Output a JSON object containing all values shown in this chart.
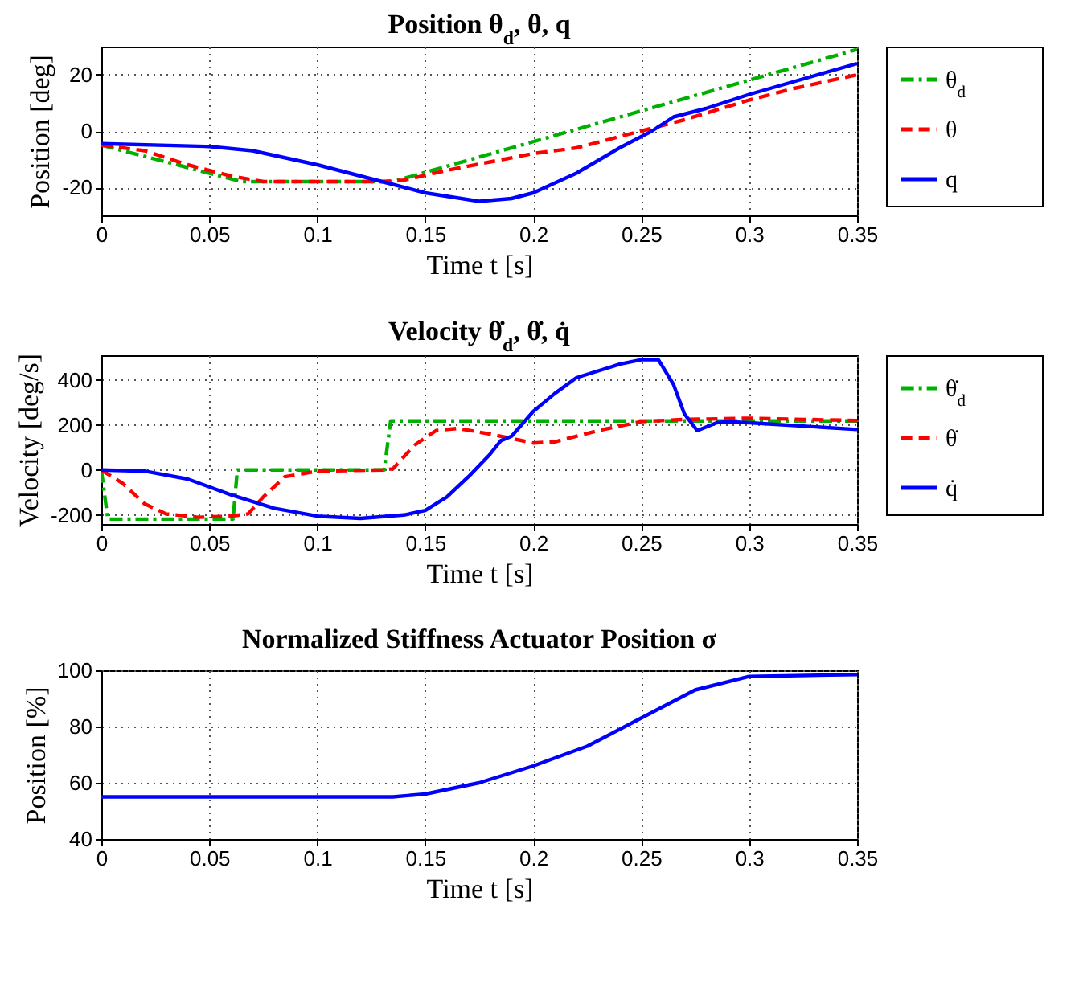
{
  "chart_data": [
    {
      "type": "line",
      "title": "Position θ$_{d}$, θ, q",
      "xlabel": "Time t [s]",
      "ylabel": "Position [deg]",
      "xlim": [
        0,
        0.35
      ],
      "xticks": [
        0,
        0.05,
        0.1,
        0.15,
        0.2,
        0.25,
        0.3,
        0.35
      ],
      "ylim": [
        -30,
        30
      ],
      "yticks": [
        -20,
        0,
        20
      ],
      "grid": true,
      "legend": "right",
      "series": [
        {
          "name": "θ$_{d}$",
          "color": "#00b000",
          "line_style": "dashdot",
          "x": [
            0,
            0.065,
            0.135,
            0.35
          ],
          "values": [
            -5,
            -18,
            -18,
            29
          ]
        },
        {
          "name": "θ",
          "color": "#ff0000",
          "line_style": "dashed",
          "x": [
            0,
            0.02,
            0.04,
            0.06,
            0.075,
            0.13,
            0.14,
            0.16,
            0.18,
            0.2,
            0.22,
            0.24,
            0.25,
            0.27,
            0.3,
            0.32,
            0.35
          ],
          "values": [
            -5,
            -7,
            -12,
            -16,
            -18,
            -18,
            -17.5,
            -14,
            -11,
            -8,
            -6,
            -2,
            0,
            4,
            11,
            15,
            20
          ]
        },
        {
          "name": "q",
          "color": "#0000ff",
          "line_style": "solid",
          "x": [
            0,
            0.05,
            0.07,
            0.1,
            0.13,
            0.15,
            0.175,
            0.19,
            0.2,
            0.22,
            0.24,
            0.255,
            0.265,
            0.28,
            0.3,
            0.35
          ],
          "values": [
            -4.5,
            -5.5,
            -7,
            -12,
            -18,
            -22,
            -25,
            -24,
            -22,
            -15,
            -6,
            0,
            5,
            8,
            13,
            24
          ]
        }
      ]
    },
    {
      "type": "line",
      "title": "Velocity θ̇$_{d}$, θ̇, q̇",
      "xlabel": "Time t [s]",
      "ylabel": "Velocity [deg/s]",
      "xlim": [
        0,
        0.35
      ],
      "xticks": [
        0,
        0.05,
        0.1,
        0.15,
        0.2,
        0.25,
        0.3,
        0.35
      ],
      "ylim": [
        -240,
        510
      ],
      "yticks": [
        -200,
        0,
        200,
        400
      ],
      "grid": true,
      "legend": "right",
      "series": [
        {
          "name": "θ̇$_{d}$",
          "color": "#00b000",
          "line_style": "dashdot",
          "x": [
            0,
            0.003,
            0.061,
            0.063,
            0.131,
            0.134,
            0.35
          ],
          "values": [
            0,
            -218,
            -218,
            0,
            0,
            218,
            218
          ]
        },
        {
          "name": "θ̇",
          "color": "#ff0000",
          "line_style": "dashed",
          "x": [
            0,
            0.01,
            0.02,
            0.03,
            0.045,
            0.06,
            0.068,
            0.075,
            0.085,
            0.1,
            0.13,
            0.135,
            0.145,
            0.155,
            0.165,
            0.18,
            0.2,
            0.21,
            0.23,
            0.25,
            0.27,
            0.3,
            0.35
          ],
          "values": [
            0,
            -60,
            -150,
            -195,
            -210,
            -205,
            -195,
            -120,
            -30,
            -5,
            0,
            5,
            110,
            175,
            185,
            160,
            120,
            125,
            175,
            215,
            225,
            230,
            220
          ]
        },
        {
          "name": "q̇",
          "color": "#0000ff",
          "line_style": "solid",
          "x": [
            0,
            0.02,
            0.04,
            0.06,
            0.08,
            0.1,
            0.12,
            0.14,
            0.15,
            0.16,
            0.17,
            0.18,
            0.185,
            0.19,
            0.2,
            0.21,
            0.22,
            0.24,
            0.25,
            0.258,
            0.265,
            0.27,
            0.276,
            0.285,
            0.29,
            0.3,
            0.35
          ],
          "values": [
            0,
            -5,
            -40,
            -110,
            -170,
            -205,
            -215,
            -200,
            -180,
            -120,
            -30,
            70,
            130,
            150,
            260,
            340,
            410,
            470,
            490,
            490,
            380,
            250,
            175,
            210,
            215,
            210,
            180
          ]
        }
      ]
    },
    {
      "type": "line",
      "title": "Normalized Stiffness Actuator Position σ",
      "xlabel": "Time t [s]",
      "ylabel": "Position [%]",
      "xlim": [
        0,
        0.35
      ],
      "xticks": [
        0,
        0.05,
        0.1,
        0.15,
        0.2,
        0.25,
        0.3,
        0.35
      ],
      "ylim": [
        40,
        100
      ],
      "yticks": [
        40,
        60,
        80,
        100
      ],
      "grid": true,
      "series": [
        {
          "color": "#0000ff",
          "line_style": "solid",
          "x": [
            0,
            0.135,
            0.15,
            0.175,
            0.2,
            0.225,
            0.25,
            0.275,
            0.3,
            0.35
          ],
          "values": [
            55,
            55,
            56,
            60,
            66,
            73,
            83,
            93,
            97.8,
            98.5
          ]
        }
      ]
    }
  ]
}
